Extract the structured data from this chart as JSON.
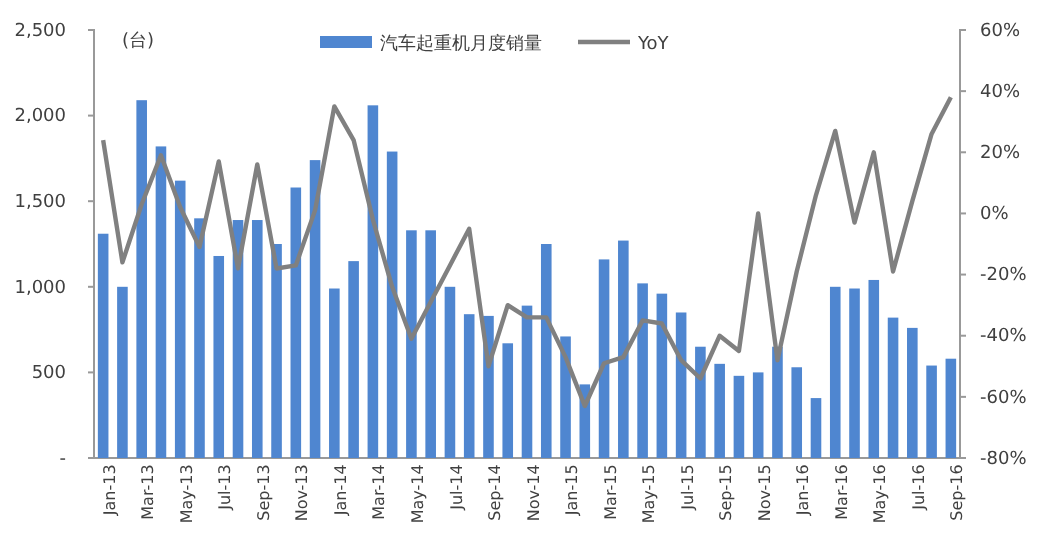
{
  "chart_data": {
    "type": "bar",
    "categories": [
      "Jan-13",
      null,
      "Mar-13",
      null,
      "May-13",
      null,
      "Jul-13",
      null,
      "Sep-13",
      null,
      "Nov-13",
      null,
      "Jan-14",
      null,
      "Mar-14",
      null,
      "May-14",
      null,
      "Jul-14",
      null,
      "Sep-14",
      null,
      "Nov-14",
      null,
      "Jan-15",
      null,
      "Mar-15",
      null,
      "May-15",
      null,
      "Jul-15",
      null,
      "Sep-15",
      null,
      "Nov-15",
      null,
      "Jan-16",
      null,
      "Mar-16",
      null,
      "May-16",
      null,
      "Jul-16",
      null,
      "Sep-16"
    ],
    "series": [
      {
        "name": "汽车起重机月度销量",
        "color": "#4f86d0",
        "values": [
          1310,
          1000,
          2090,
          1820,
          1620,
          1400,
          1180,
          1390,
          1390,
          1250,
          1580,
          1740,
          990,
          1150,
          2060,
          1790,
          1330,
          1330,
          1000,
          840,
          830,
          670,
          890,
          1250,
          710,
          430,
          1160,
          1270,
          1020,
          960,
          850,
          650,
          550,
          480,
          500,
          650,
          530,
          350,
          1000,
          990,
          1040,
          820,
          760,
          540,
          580
        ]
      },
      {
        "name": "YoY",
        "type": "line",
        "axis": "y2",
        "color": "#808080",
        "values": [
          24,
          -16,
          3,
          19,
          2,
          -11,
          17,
          -18,
          16,
          -18,
          -17,
          1,
          35,
          24,
          -2,
          -24,
          -41,
          -29,
          -17,
          -5,
          -50,
          -30,
          -34,
          -34,
          -47,
          -63,
          -49,
          -47,
          -35,
          -36,
          -48,
          -54,
          -40,
          -45,
          0,
          -48,
          -19,
          6,
          27,
          -3,
          20,
          -19,
          4,
          26,
          38
        ]
      }
    ],
    "ylim": [
      0,
      2500
    ],
    "yticks": [
      {
        "value": 0,
        "label": "-"
      },
      {
        "value": 500,
        "label": "500"
      },
      {
        "value": 1000,
        "label": "1,000"
      },
      {
        "value": 1500,
        "label": "1,500"
      },
      {
        "value": 2000,
        "label": "2,000"
      },
      {
        "value": 2500,
        "label": "2,500"
      }
    ],
    "y2lim": [
      -80,
      60
    ],
    "y2ticks": [
      {
        "value": -80,
        "label": "-80%"
      },
      {
        "value": -60,
        "label": "-60%"
      },
      {
        "value": -40,
        "label": "-40%"
      },
      {
        "value": -20,
        "label": "-20%"
      },
      {
        "value": 0,
        "label": "0%"
      },
      {
        "value": 20,
        "label": "20%"
      },
      {
        "value": 40,
        "label": "40%"
      },
      {
        "value": 60,
        "label": "60%"
      }
    ],
    "annotations": [
      "(台)"
    ],
    "legend": "top",
    "grid": false
  }
}
